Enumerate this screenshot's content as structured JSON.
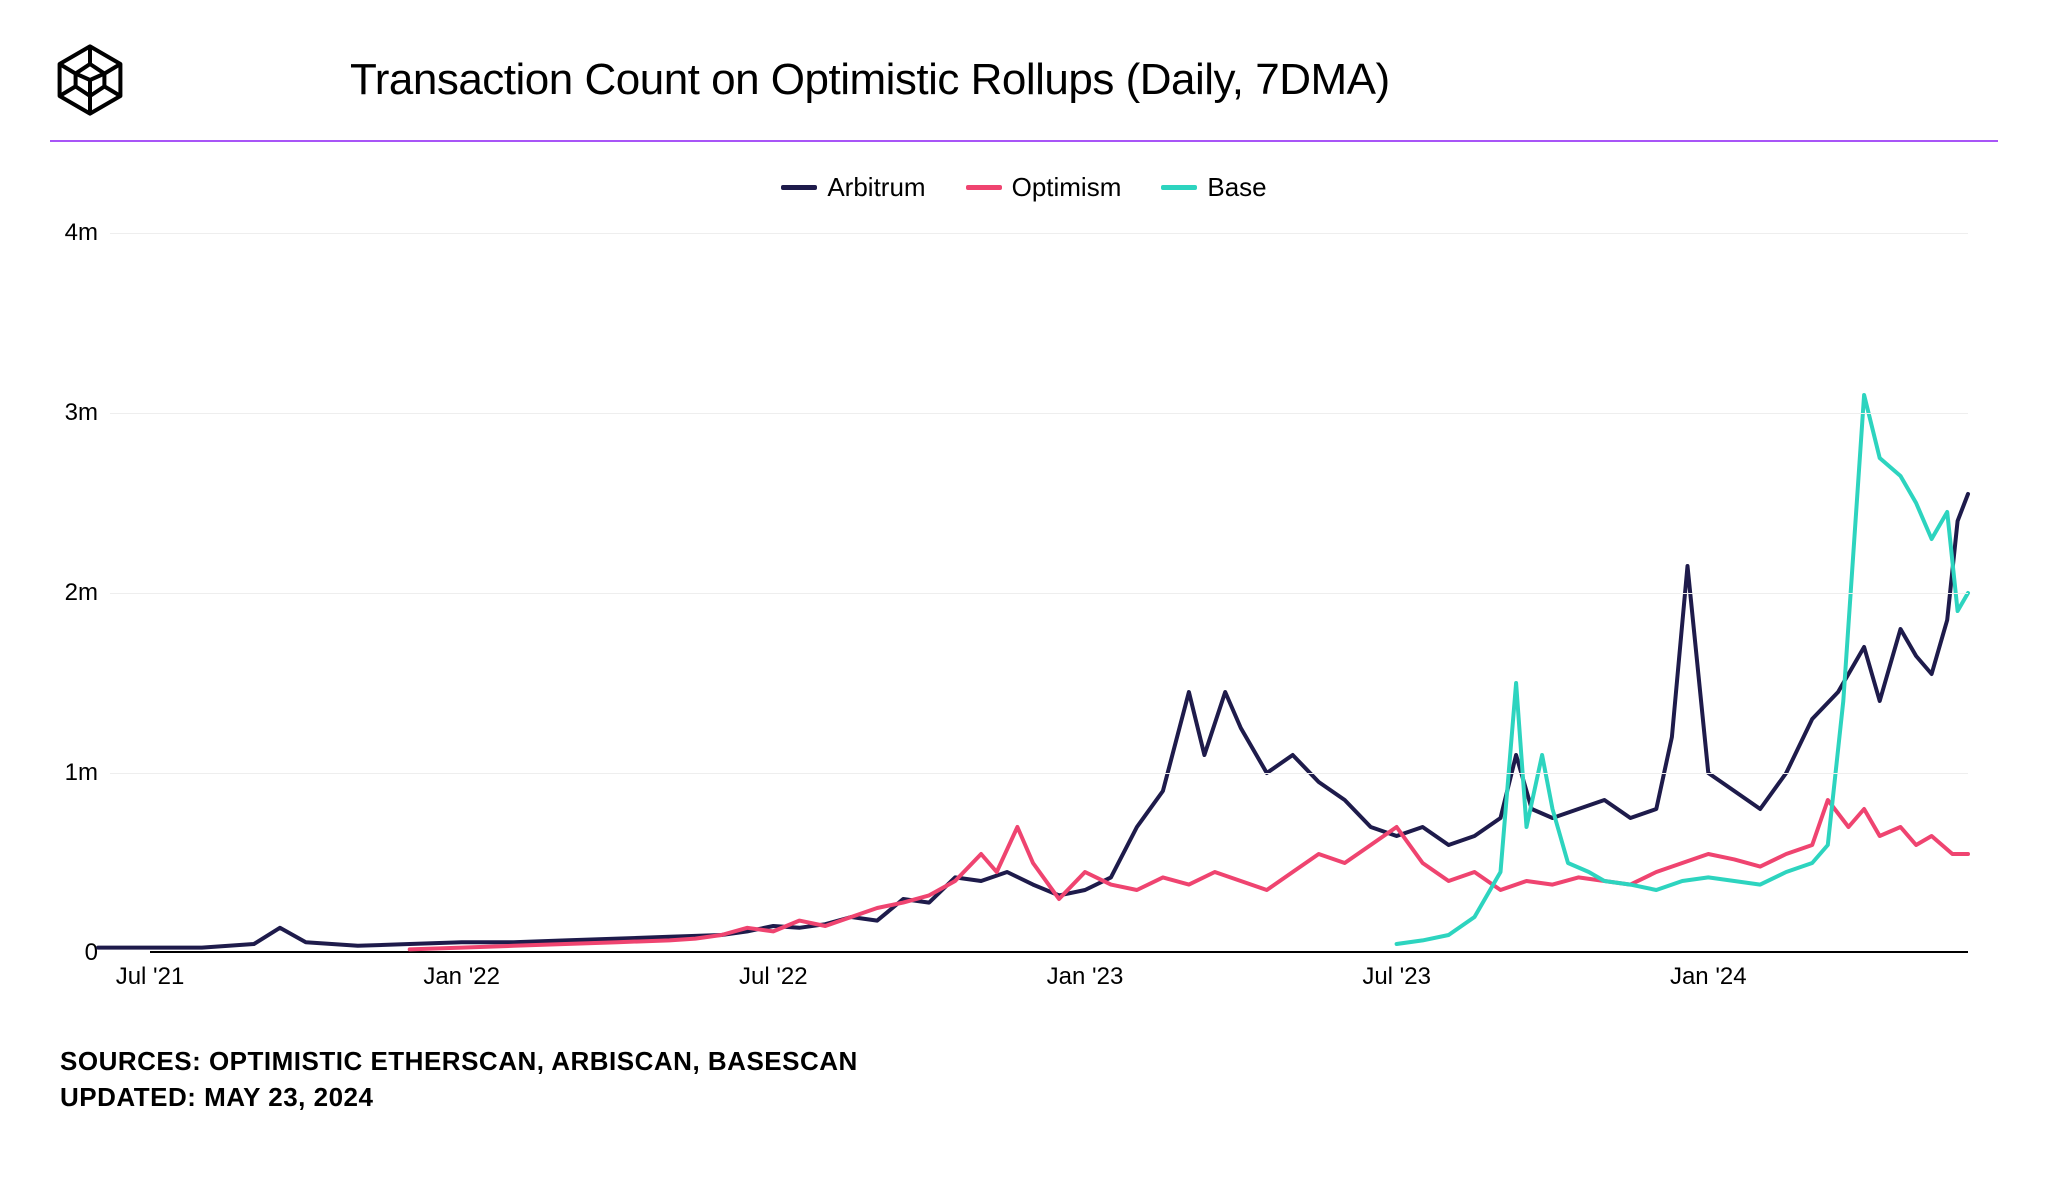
{
  "title": "Transaction Count on Optimistic Rollups (Daily, 7DMA)",
  "divider_color": "#a855f7",
  "footer": {
    "sources": "SOURCES: OPTIMISTIC ETHERSCAN, ARBISCAN, BASESCAN",
    "updated": "UPDATED: MAY 23, 2024"
  },
  "chart": {
    "type": "line",
    "background_color": "#ffffff",
    "grid_color": "#eeeeee",
    "axis_color": "#000000",
    "title_fontsize": 44,
    "label_fontsize": 24,
    "legend_fontsize": 26,
    "line_width": 4,
    "y": {
      "min": 0,
      "max": 4000000,
      "ticks": [
        0,
        1000000,
        2000000,
        3000000,
        4000000
      ],
      "tick_labels": [
        "0",
        "1m",
        "2m",
        "3m",
        "4m"
      ]
    },
    "x": {
      "min": 0,
      "max": 35,
      "ticks": [
        0,
        6,
        12,
        18,
        24,
        30
      ],
      "tick_labels": [
        "Jul '21",
        "Jan '22",
        "Jul '22",
        "Jan '23",
        "Jul '23",
        "Jan '24"
      ]
    },
    "series": [
      {
        "name": "Arbitrum",
        "color": "#1e1b4b",
        "data": [
          [
            -1,
            30000
          ],
          [
            0,
            30000
          ],
          [
            1,
            30000
          ],
          [
            2,
            50000
          ],
          [
            2.5,
            140000
          ],
          [
            3,
            60000
          ],
          [
            4,
            40000
          ],
          [
            5,
            50000
          ],
          [
            6,
            60000
          ],
          [
            7,
            60000
          ],
          [
            8,
            70000
          ],
          [
            9,
            80000
          ],
          [
            10,
            90000
          ],
          [
            11,
            100000
          ],
          [
            11.5,
            120000
          ],
          [
            12,
            150000
          ],
          [
            12.5,
            140000
          ],
          [
            13,
            160000
          ],
          [
            13.5,
            200000
          ],
          [
            14,
            180000
          ],
          [
            14.5,
            300000
          ],
          [
            15,
            280000
          ],
          [
            15.5,
            420000
          ],
          [
            16,
            400000
          ],
          [
            16.5,
            450000
          ],
          [
            17,
            380000
          ],
          [
            17.5,
            320000
          ],
          [
            18,
            350000
          ],
          [
            18.5,
            420000
          ],
          [
            19,
            700000
          ],
          [
            19.5,
            900000
          ],
          [
            20,
            1450000
          ],
          [
            20.3,
            1100000
          ],
          [
            20.7,
            1450000
          ],
          [
            21,
            1250000
          ],
          [
            21.5,
            1000000
          ],
          [
            22,
            1100000
          ],
          [
            22.5,
            950000
          ],
          [
            23,
            850000
          ],
          [
            23.5,
            700000
          ],
          [
            24,
            650000
          ],
          [
            24.5,
            700000
          ],
          [
            25,
            600000
          ],
          [
            25.5,
            650000
          ],
          [
            26,
            750000
          ],
          [
            26.3,
            1100000
          ],
          [
            26.6,
            800000
          ],
          [
            27,
            750000
          ],
          [
            27.5,
            800000
          ],
          [
            28,
            850000
          ],
          [
            28.5,
            750000
          ],
          [
            29,
            800000
          ],
          [
            29.3,
            1200000
          ],
          [
            29.6,
            2150000
          ],
          [
            30,
            1000000
          ],
          [
            30.5,
            900000
          ],
          [
            31,
            800000
          ],
          [
            31.5,
            1000000
          ],
          [
            32,
            1300000
          ],
          [
            32.5,
            1450000
          ],
          [
            33,
            1700000
          ],
          [
            33.3,
            1400000
          ],
          [
            33.7,
            1800000
          ],
          [
            34,
            1650000
          ],
          [
            34.3,
            1550000
          ],
          [
            34.6,
            1850000
          ],
          [
            34.8,
            2400000
          ],
          [
            35,
            2550000
          ]
        ]
      },
      {
        "name": "Optimism",
        "color": "#ef4470",
        "data": [
          [
            5,
            20000
          ],
          [
            6,
            30000
          ],
          [
            7,
            40000
          ],
          [
            8,
            50000
          ],
          [
            9,
            60000
          ],
          [
            10,
            70000
          ],
          [
            10.5,
            80000
          ],
          [
            11,
            100000
          ],
          [
            11.5,
            140000
          ],
          [
            12,
            120000
          ],
          [
            12.5,
            180000
          ],
          [
            13,
            150000
          ],
          [
            13.5,
            200000
          ],
          [
            14,
            250000
          ],
          [
            14.5,
            280000
          ],
          [
            15,
            320000
          ],
          [
            15.5,
            400000
          ],
          [
            16,
            550000
          ],
          [
            16.3,
            450000
          ],
          [
            16.7,
            700000
          ],
          [
            17,
            500000
          ],
          [
            17.5,
            300000
          ],
          [
            18,
            450000
          ],
          [
            18.5,
            380000
          ],
          [
            19,
            350000
          ],
          [
            19.5,
            420000
          ],
          [
            20,
            380000
          ],
          [
            20.5,
            450000
          ],
          [
            21,
            400000
          ],
          [
            21.5,
            350000
          ],
          [
            22,
            450000
          ],
          [
            22.5,
            550000
          ],
          [
            23,
            500000
          ],
          [
            23.5,
            600000
          ],
          [
            24,
            700000
          ],
          [
            24.5,
            500000
          ],
          [
            25,
            400000
          ],
          [
            25.5,
            450000
          ],
          [
            26,
            350000
          ],
          [
            26.5,
            400000
          ],
          [
            27,
            380000
          ],
          [
            27.5,
            420000
          ],
          [
            28,
            400000
          ],
          [
            28.5,
            380000
          ],
          [
            29,
            450000
          ],
          [
            29.5,
            500000
          ],
          [
            30,
            550000
          ],
          [
            30.5,
            520000
          ],
          [
            31,
            480000
          ],
          [
            31.5,
            550000
          ],
          [
            32,
            600000
          ],
          [
            32.3,
            850000
          ],
          [
            32.7,
            700000
          ],
          [
            33,
            800000
          ],
          [
            33.3,
            650000
          ],
          [
            33.7,
            700000
          ],
          [
            34,
            600000
          ],
          [
            34.3,
            650000
          ],
          [
            34.7,
            550000
          ],
          [
            35,
            550000
          ]
        ]
      },
      {
        "name": "Base",
        "color": "#2dd4bf",
        "data": [
          [
            24,
            50000
          ],
          [
            24.5,
            70000
          ],
          [
            25,
            100000
          ],
          [
            25.5,
            200000
          ],
          [
            26,
            450000
          ],
          [
            26.3,
            1500000
          ],
          [
            26.5,
            700000
          ],
          [
            26.8,
            1100000
          ],
          [
            27,
            800000
          ],
          [
            27.3,
            500000
          ],
          [
            27.7,
            450000
          ],
          [
            28,
            400000
          ],
          [
            28.5,
            380000
          ],
          [
            29,
            350000
          ],
          [
            29.5,
            400000
          ],
          [
            30,
            420000
          ],
          [
            30.5,
            400000
          ],
          [
            31,
            380000
          ],
          [
            31.5,
            450000
          ],
          [
            32,
            500000
          ],
          [
            32.3,
            600000
          ],
          [
            32.6,
            1400000
          ],
          [
            33,
            3100000
          ],
          [
            33.3,
            2750000
          ],
          [
            33.7,
            2650000
          ],
          [
            34,
            2500000
          ],
          [
            34.3,
            2300000
          ],
          [
            34.6,
            2450000
          ],
          [
            34.8,
            1900000
          ],
          [
            35,
            2000000
          ]
        ]
      }
    ]
  }
}
